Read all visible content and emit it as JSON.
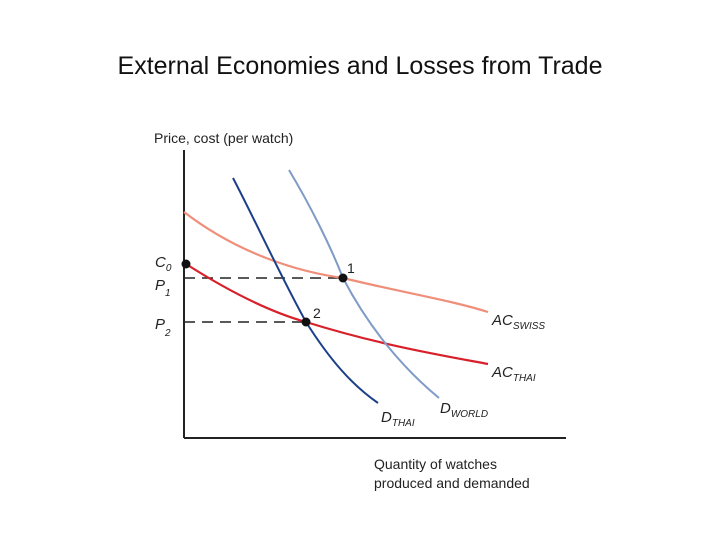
{
  "slide": {
    "title": "External Economies and Losses from Trade"
  },
  "diagram": {
    "y_axis_label": "Price, cost (per watch)",
    "x_axis_label_line1": "Quantity of watches",
    "x_axis_label_line2": "produced and demanded",
    "c0": {
      "main": "C",
      "sub": "0"
    },
    "p1": {
      "main": "P",
      "sub": "1"
    },
    "p2": {
      "main": "P",
      "sub": "2"
    },
    "point1_label": "1",
    "point2_label": "2",
    "curves": {
      "ac_swiss": {
        "main": "AC",
        "sub": "SWISS",
        "color": "#ef8f7a"
      },
      "ac_thai": {
        "main": "AC",
        "sub": "THAI",
        "color": "#d8202a"
      },
      "d_thai": {
        "main": "D",
        "sub": "THAI",
        "color": "#1c3f8a"
      },
      "d_world": {
        "main": "D",
        "sub": "WORLD",
        "color": "#7f9bc7"
      }
    }
  }
}
